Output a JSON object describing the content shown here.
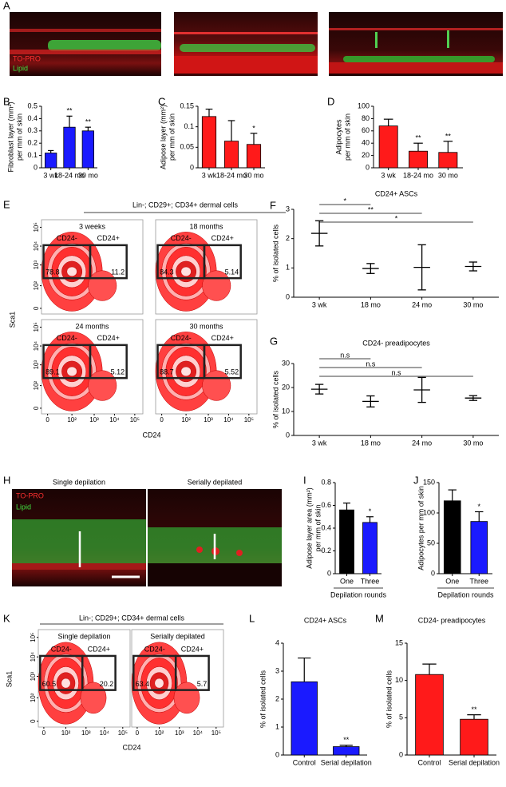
{
  "images": [
    {
      "letter": "A",
      "stain1": "TO-PRO",
      "stain2": "Lipid"
    },
    {
      "letter": "H",
      "left_title": "Single depilation",
      "right_title": "Serially depilated",
      "stain1": "TO-PRO",
      "stain2": "Lipid"
    }
  ],
  "flow": [
    {
      "letter": "E",
      "header": "Lin-; CD29+; CD34+ dermal cells",
      "y_label": "Sca1",
      "x_label": "CD24",
      "ticks": [
        "0",
        "10²",
        "10³",
        "10⁴",
        "10⁵"
      ],
      "plots": [
        {
          "title": "3 weeks",
          "left_gate": "CD24-",
          "right_gate": "CD24+",
          "left_pct": 78.8,
          "right_pct": 11.2
        },
        {
          "title": "18 months",
          "left_gate": "CD24-",
          "right_gate": "CD24+",
          "left_pct": 84.3,
          "right_pct": 5.14
        },
        {
          "title": "24 months",
          "left_gate": "CD24-",
          "right_gate": "CD24+",
          "left_pct": 89.1,
          "right_pct": 5.12
        },
        {
          "title": "30 months",
          "left_gate": "CD24-",
          "right_gate": "CD24+",
          "left_pct": 88.7,
          "right_pct": 5.52
        }
      ]
    },
    {
      "letter": "K",
      "header": "Lin-; CD29+; CD34+ dermal cells",
      "y_label": "Sca1",
      "x_label": "CD24",
      "ticks": [
        "0",
        "10²",
        "10³",
        "10⁴",
        "10⁵"
      ],
      "plots": [
        {
          "title": "Single depilation",
          "left_gate": "CD24-",
          "right_gate": "CD24+",
          "left_pct": 60.5,
          "right_pct": 20.2
        },
        {
          "title": "Serially depilated",
          "left_gate": "CD24-",
          "right_gate": "CD24+",
          "left_pct": 63.4,
          "right_pct": 5.7
        }
      ]
    }
  ],
  "chart_data": [
    {
      "type": "bar",
      "panel": "B",
      "y_label": [
        "Fibroblast layer (mm²)",
        "per mm of skin"
      ],
      "categories": [
        "3 wk",
        "18-24 mo",
        "30 mo"
      ],
      "values": [
        0.12,
        0.33,
        0.3
      ],
      "errors": [
        0.02,
        0.09,
        0.03
      ],
      "significance": [
        null,
        "**",
        "**"
      ],
      "color": "#1a1aff",
      "ylim": [
        0,
        0.5
      ],
      "yticks": [
        0,
        0.1,
        0.2,
        0.3,
        0.4,
        0.5
      ]
    },
    {
      "type": "bar",
      "panel": "C",
      "y_label": [
        "Adipose layer (mm²)",
        "per mm of skin"
      ],
      "categories": [
        "3 wk",
        "18-24 mo",
        "30 mo"
      ],
      "values": [
        0.125,
        0.065,
        0.057
      ],
      "errors": [
        0.018,
        0.05,
        0.027
      ],
      "significance": [
        null,
        null,
        "*"
      ],
      "color": "#ff1a1a",
      "ylim": [
        0,
        0.15
      ],
      "yticks": [
        0,
        0.05,
        0.1,
        0.15
      ]
    },
    {
      "type": "bar",
      "panel": "D",
      "y_label": [
        "Adipocytes",
        "per mm of skin"
      ],
      "categories": [
        "3 wk",
        "18-24 mo",
        "30 mo"
      ],
      "values": [
        68,
        27,
        25
      ],
      "errors": [
        11,
        13,
        18
      ],
      "significance": [
        null,
        "**",
        "**"
      ],
      "color": "#ff1a1a",
      "ylim": [
        0,
        100
      ],
      "yticks": [
        0,
        20,
        40,
        60,
        80,
        100
      ]
    },
    {
      "type": "errorbar",
      "panel": "F",
      "title": "CD24+ ASCs",
      "y_label": [
        "% of isolated cells"
      ],
      "categories": [
        "3 wk",
        "18 mo",
        "24 mo",
        "30 mo"
      ],
      "values": [
        2.18,
        0.98,
        1.02,
        1.05
      ],
      "errors": [
        0.43,
        0.17,
        0.77,
        0.15
      ],
      "color": "#000000",
      "ylim": [
        0,
        3
      ],
      "yticks": [
        0,
        1,
        2,
        3
      ],
      "comparisons": [
        {
          "from": 0,
          "to": 1,
          "label": "*"
        },
        {
          "from": 0,
          "to": 2,
          "label": "**"
        },
        {
          "from": 0,
          "to": 3,
          "label": "*"
        }
      ]
    },
    {
      "type": "errorbar",
      "panel": "G",
      "title": "CD24- preadipocytes",
      "y_label": [
        "% of isolated cells"
      ],
      "categories": [
        "3 wk",
        "18 mo",
        "24 mo",
        "30 mo"
      ],
      "values": [
        19.3,
        14.2,
        19,
        15.6
      ],
      "errors": [
        2,
        2.3,
        5.2,
        1
      ],
      "color": "#000000",
      "ylim": [
        0,
        30
      ],
      "yticks": [
        0,
        10,
        20,
        30
      ],
      "comparisons": [
        {
          "from": 0,
          "to": 1,
          "label": "n.s"
        },
        {
          "from": 0,
          "to": 2,
          "label": "n.s"
        },
        {
          "from": 0,
          "to": 3,
          "label": "n.s"
        }
      ]
    },
    {
      "type": "bar",
      "panel": "I",
      "y_label": [
        "Adipose layer area (mm²)",
        "per mm of skin"
      ],
      "x_label": "Depilation rounds",
      "categories": [
        "One",
        "Three"
      ],
      "values": [
        0.56,
        0.45
      ],
      "errors": [
        0.06,
        0.05
      ],
      "significance": [
        null,
        "*"
      ],
      "colors": [
        "#000000",
        "#1a1aff"
      ],
      "ylim": [
        0,
        0.8
      ],
      "yticks": [
        0,
        0.2,
        0.4,
        0.6,
        0.8
      ]
    },
    {
      "type": "bar",
      "panel": "J",
      "y_label": [
        "Adipocytes per mm of skin"
      ],
      "x_label": "Depilation rounds",
      "categories": [
        "One",
        "Three"
      ],
      "values": [
        120,
        86
      ],
      "errors": [
        18,
        16
      ],
      "significance": [
        null,
        "*"
      ],
      "colors": [
        "#000000",
        "#1a1aff"
      ],
      "ylim": [
        0,
        150
      ],
      "yticks": [
        0,
        50,
        100,
        150
      ]
    },
    {
      "type": "bar",
      "panel": "L",
      "title": "CD24+ ASCs",
      "y_label": [
        "% of isolated cells"
      ],
      "categories": [
        "Control",
        "Serial depilation"
      ],
      "values": [
        2.62,
        0.3
      ],
      "errors": [
        0.85,
        0.05
      ],
      "significance": [
        null,
        "**"
      ],
      "color": "#1a1aff",
      "ylim": [
        0,
        4
      ],
      "yticks": [
        0,
        1,
        2,
        3,
        4
      ]
    },
    {
      "type": "bar",
      "panel": "M",
      "title": "CD24- preadipocytes",
      "y_label": [
        "% of isolated cells"
      ],
      "categories": [
        "Control",
        "Serial depilation"
      ],
      "values": [
        10.8,
        4.8
      ],
      "errors": [
        1.4,
        0.6
      ],
      "significance": [
        null,
        "**"
      ],
      "color": "#ff1a1a",
      "ylim": [
        0,
        15
      ],
      "yticks": [
        0,
        5,
        10,
        15
      ]
    }
  ]
}
